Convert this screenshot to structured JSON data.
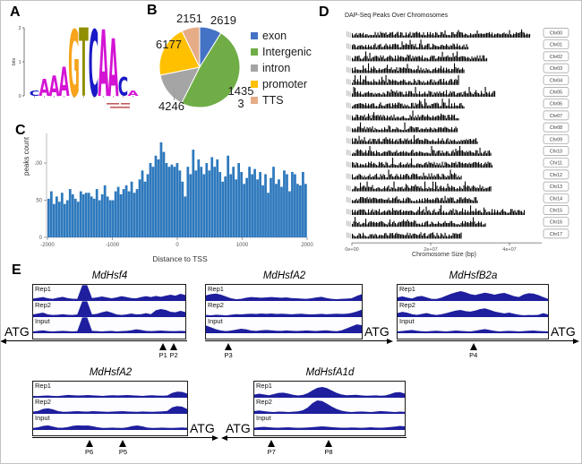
{
  "figure": {
    "panel_labels": {
      "A": "A",
      "B": "B",
      "C": "C",
      "D": "D",
      "E": "E"
    }
  },
  "colors": {
    "hist_bar": "#2e79bd",
    "track_signal": "#1e1e9e",
    "chrom_bar": "#000000",
    "logo": {
      "A": "#d414d4",
      "C": "#1a1ac8",
      "G": "#f7a41c",
      "T": "#8f8f00"
    }
  },
  "chart_data": [
    {
      "id": "binding-motif-logo",
      "type": "bar",
      "subtype": "sequence-logo",
      "ylabel": "bits",
      "yticks": [
        0,
        1,
        2
      ],
      "ylim": [
        0,
        2
      ],
      "positions": [
        {
          "letter": "C",
          "bits": 0.15
        },
        {
          "letter": "A",
          "bits": 0.5
        },
        {
          "letter": "A",
          "bits": 0.6
        },
        {
          "letter": "A",
          "bits": 0.85
        },
        {
          "letter": "G",
          "bits": 1.95
        },
        {
          "letter": "T",
          "bits": 2.0
        },
        {
          "letter": "C",
          "bits": 1.95
        },
        {
          "letter": "A",
          "bits": 1.95
        },
        {
          "letter": "A",
          "bits": 1.7
        },
        {
          "letter": "C",
          "bits": 0.55
        },
        {
          "letter": "A",
          "bits": 0.15
        }
      ],
      "consensus": "AAAGTCAA"
    },
    {
      "id": "peak-annotation-pie",
      "type": "pie",
      "labels": [
        "exon",
        "Intergenic",
        "intron",
        "promoter",
        "TTS"
      ],
      "values": [
        2619,
        14353,
        4246,
        6177,
        2151
      ],
      "colors": [
        "#4472c4",
        "#70ad47",
        "#a5a5a5",
        "#ffc000",
        "#e6ac88"
      ],
      "start_angle_deg": 0,
      "direction": "clockwise",
      "legend_position": "right",
      "value_labels": {
        "exon": "2619",
        "intergenic_line1": "1435",
        "intergenic_line2": "3",
        "intron": "4246",
        "promoter": "6177",
        "tts": "2151"
      }
    },
    {
      "id": "tss-distance-histogram",
      "type": "bar",
      "xlabel": "Distance to TSS",
      "ylabel": "peaks count",
      "xlim": [
        -2000,
        2000
      ],
      "ylim": [
        0,
        135
      ],
      "xticks": [
        -2000,
        -1000,
        0,
        1000,
        2000
      ],
      "yticks": [
        0,
        50,
        100
      ],
      "values": [
        52,
        62,
        45,
        55,
        48,
        60,
        45,
        50,
        65,
        58,
        52,
        48,
        62,
        58,
        60,
        60,
        55,
        52,
        65,
        50,
        58,
        70,
        55,
        50,
        50,
        62,
        68,
        58,
        65,
        70,
        62,
        75,
        60,
        65,
        78,
        90,
        75,
        85,
        100,
        95,
        110,
        105,
        128,
        115,
        100,
        95,
        98,
        95,
        100,
        90,
        75,
        55,
        95,
        85,
        118,
        90,
        105,
        95,
        85,
        100,
        90,
        108,
        95,
        105,
        88,
        75,
        82,
        110,
        85,
        95,
        78,
        100,
        88,
        72,
        80,
        95,
        85,
        92,
        78,
        88,
        70,
        85,
        60,
        80,
        95,
        72,
        78,
        68,
        90,
        85,
        62,
        88,
        85,
        72,
        70,
        88,
        72
      ]
    },
    {
      "id": "dap-seq-peaks-over-chromosomes",
      "type": "area",
      "title": "DAP-Seq Peaks Over Chromosomes",
      "xlabel": "Chromosome Size (bp)",
      "xticks": [
        "0e+00",
        "2e+07",
        "4e+07"
      ],
      "chromosomes": [
        {
          "name": "Chr00",
          "rel_length": 0.95
        },
        {
          "name": "Chr01",
          "rel_length": 0.62
        },
        {
          "name": "Chr02",
          "rel_length": 0.72
        },
        {
          "name": "Chr03",
          "rel_length": 0.6
        },
        {
          "name": "Chr04",
          "rel_length": 0.57
        },
        {
          "name": "Chr05",
          "rel_length": 0.76
        },
        {
          "name": "Chr06",
          "rel_length": 0.6
        },
        {
          "name": "Chr07",
          "rel_length": 0.57
        },
        {
          "name": "Chr08",
          "rel_length": 0.56
        },
        {
          "name": "Chr09",
          "rel_length": 0.67
        },
        {
          "name": "Chr10",
          "rel_length": 0.74
        },
        {
          "name": "Chr11",
          "rel_length": 0.75
        },
        {
          "name": "Chr12",
          "rel_length": 0.58
        },
        {
          "name": "Chr13",
          "rel_length": 0.74
        },
        {
          "name": "Chr14",
          "rel_length": 0.67
        },
        {
          "name": "Chr15",
          "rel_length": 0.92
        },
        {
          "name": "Chr16",
          "rel_length": 0.71
        },
        {
          "name": "Chr17",
          "rel_length": 0.58
        }
      ]
    }
  ],
  "gene_browsers": [
    {
      "name": "MdHsf4",
      "atg_label": "ATG",
      "atg_side": "left",
      "markers": [
        {
          "label": "P1",
          "pos": 0.86
        },
        {
          "label": "P2",
          "pos": 0.93
        }
      ],
      "tracks": [
        {
          "label": "Rep1",
          "values": [
            10,
            15,
            20,
            12,
            8,
            16,
            22,
            14,
            9,
            8,
            100,
            100,
            14,
            18,
            24,
            18,
            12,
            18,
            26,
            20,
            14,
            12,
            20,
            26,
            20,
            28,
            22,
            30,
            36,
            30,
            42,
            34
          ]
        },
        {
          "label": "Rep2",
          "values": [
            12,
            18,
            24,
            12,
            8,
            10,
            14,
            10,
            8,
            12,
            100,
            100,
            12,
            16,
            26,
            34,
            24,
            12,
            8,
            12,
            18,
            12,
            14,
            20,
            14,
            40,
            48,
            42,
            30,
            26,
            36,
            28
          ]
        },
        {
          "label": "Input",
          "values": [
            6,
            10,
            14,
            8,
            6,
            8,
            10,
            8,
            6,
            8,
            100,
            100,
            10,
            8,
            6,
            8,
            10,
            6,
            8,
            10,
            14,
            20,
            16,
            10,
            8,
            10,
            12,
            10,
            8,
            8,
            10,
            8
          ]
        }
      ]
    },
    {
      "name": "MdHsfA2",
      "atg_label": "ATG",
      "atg_side": "right",
      "markers": [
        {
          "label": "P3",
          "pos": 0.15
        }
      ],
      "tracks": [
        {
          "label": "Rep1",
          "values": [
            32,
            40,
            44,
            36,
            24,
            12,
            6,
            8,
            16,
            20,
            18,
            16,
            18,
            20,
            18,
            16,
            18,
            14,
            12,
            10,
            8,
            12,
            18,
            22,
            14,
            8,
            6,
            8,
            10,
            12,
            28,
            40
          ]
        },
        {
          "label": "Rep2",
          "values": [
            8,
            6,
            10,
            8,
            5,
            10,
            14,
            12,
            15,
            17,
            15,
            18,
            16,
            18,
            15,
            17,
            15,
            13,
            15,
            17,
            14,
            12,
            14,
            16,
            13,
            15,
            17,
            15,
            17,
            22,
            32,
            44
          ]
        },
        {
          "label": "Input",
          "values": [
            46,
            34,
            20,
            12,
            8,
            12,
            18,
            24,
            20,
            12,
            10,
            14,
            16,
            14,
            11,
            10,
            13,
            11,
            9,
            11,
            13,
            11,
            9,
            12,
            14,
            10,
            7,
            14,
            26,
            40,
            54,
            48
          ]
        }
      ]
    },
    {
      "name": "MdHsfB2a",
      "atg_label": "ATG",
      "atg_side": "right",
      "markers": [
        {
          "label": "P4",
          "pos": 0.51
        }
      ],
      "tracks": [
        {
          "label": "Rep1",
          "values": [
            18,
            25,
            17,
            11,
            23,
            28,
            18,
            8,
            7,
            16,
            30,
            42,
            52,
            60,
            52,
            40,
            34,
            42,
            50,
            44,
            36,
            44,
            48,
            38,
            26,
            20,
            38,
            46,
            44,
            34,
            20,
            8
          ]
        },
        {
          "label": "Rep2",
          "values": [
            21,
            29,
            23,
            14,
            9,
            15,
            21,
            13,
            8,
            13,
            20,
            29,
            38,
            42,
            34,
            31,
            38,
            47,
            53,
            43,
            32,
            25,
            19,
            24,
            17,
            10,
            6,
            8,
            7,
            9,
            20,
            12
          ]
        },
        {
          "label": "Input",
          "values": [
            6,
            9,
            13,
            16,
            11,
            7,
            6,
            9,
            11,
            8,
            6,
            9,
            12,
            10,
            7,
            6,
            11,
            17,
            22,
            16,
            10,
            6,
            8,
            10,
            8,
            6,
            8,
            11,
            12,
            9,
            7,
            6
          ]
        }
      ]
    },
    {
      "name": "MdHsfA2",
      "atg_label": "ATG",
      "atg_side": "right",
      "markers": [
        {
          "label": "P6",
          "pos": 0.37
        },
        {
          "label": "P5",
          "pos": 0.59
        }
      ],
      "tracks": [
        {
          "label": "Rep1",
          "values": [
            6,
            5,
            7,
            9,
            6,
            5,
            9,
            13,
            11,
            9,
            10,
            12,
            10,
            8,
            6,
            9,
            11,
            9,
            11,
            12,
            10,
            8,
            6,
            9,
            11,
            8,
            7,
            9,
            26,
            35,
            33,
            22
          ]
        },
        {
          "label": "Rep2",
          "values": [
            9,
            14,
            27,
            31,
            24,
            13,
            7,
            8,
            11,
            12,
            10,
            9,
            12,
            11,
            9,
            7,
            9,
            11,
            12,
            10,
            8,
            7,
            10,
            8,
            7,
            9,
            11,
            14,
            38,
            46,
            42,
            26
          ]
        },
        {
          "label": "Input",
          "values": [
            7,
            12,
            21,
            25,
            17,
            9,
            9,
            14,
            22,
            25,
            23,
            24,
            19,
            12,
            7,
            8,
            10,
            8,
            7,
            12,
            20,
            24,
            18,
            10,
            7,
            8,
            10,
            8,
            7,
            9,
            11,
            8
          ]
        }
      ]
    },
    {
      "name": "MdHsfA1d",
      "atg_label": "ATG",
      "atg_side": "left",
      "markers": [
        {
          "label": "P7",
          "pos": 0.12
        },
        {
          "label": "P8",
          "pos": 0.5
        }
      ],
      "tracks": [
        {
          "label": "Rep1",
          "values": [
            15,
            21,
            16,
            11,
            18,
            26,
            28,
            22,
            14,
            9,
            13,
            24,
            44,
            60,
            66,
            58,
            42,
            26,
            16,
            11,
            12,
            14,
            10,
            7,
            8,
            10,
            7,
            9,
            18,
            30,
            32,
            22
          ]
        },
        {
          "label": "Rep2",
          "values": [
            13,
            17,
            12,
            8,
            6,
            9,
            8,
            6,
            8,
            11,
            18,
            36,
            66,
            84,
            80,
            62,
            42,
            26,
            15,
            9,
            6,
            8,
            10,
            8,
            6,
            9,
            13,
            11,
            8,
            6,
            9,
            7
          ]
        },
        {
          "label": "Input",
          "values": [
            9,
            13,
            15,
            12,
            10,
            9,
            11,
            12,
            10,
            8,
            9,
            11,
            13,
            16,
            18,
            16,
            13,
            11,
            9,
            9,
            11,
            10,
            8,
            10,
            12,
            10,
            9,
            11,
            14,
            17,
            21,
            18
          ]
        }
      ]
    }
  ]
}
